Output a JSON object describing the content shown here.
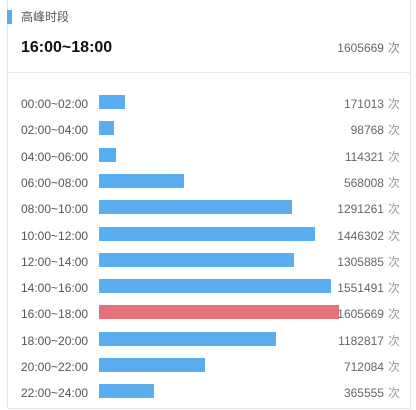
{
  "header": {
    "title": "高峰时段",
    "peak_period": "16:00~18:00",
    "peak_count": "1605669",
    "unit": "次"
  },
  "colors": {
    "bar": "#5aaef0",
    "peak_bar": "#e5727b",
    "accent": "#5aaef0"
  },
  "chart_data": {
    "type": "bar",
    "orientation": "horizontal",
    "title": "高峰时段",
    "unit": "次",
    "highlight_category": "16:00~18:00",
    "categories": [
      "00:00~02:00",
      "02:00~04:00",
      "04:00~06:00",
      "06:00~08:00",
      "08:00~10:00",
      "10:00~12:00",
      "12:00~14:00",
      "14:00~16:00",
      "16:00~18:00",
      "18:00~20:00",
      "20:00~22:00",
      "22:00~24:00"
    ],
    "values": [
      171013,
      98768,
      114321,
      568008,
      1291261,
      1446302,
      1305885,
      1551491,
      1605669,
      1182817,
      712084,
      365555
    ],
    "xlim": [
      0,
      1605669
    ],
    "grid": false,
    "legend": "none"
  }
}
